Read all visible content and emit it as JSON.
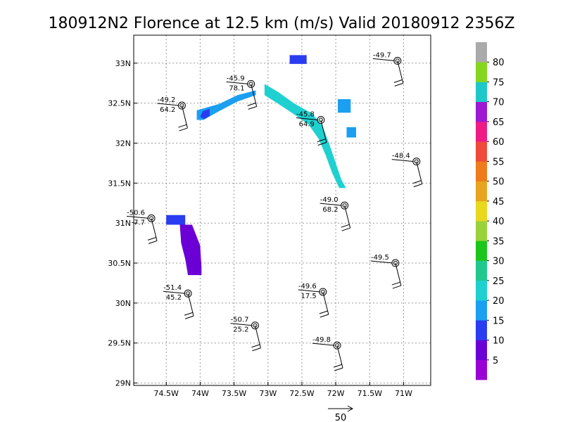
{
  "chart_data": {
    "type": "scatter",
    "title": "180912N2 Florence at 12.5 km (m/s) Valid 20180912 2356Z",
    "x_ticks": [
      "74.5W",
      "74W",
      "73.5W",
      "73W",
      "72.5W",
      "72W",
      "71.5W",
      "71W"
    ],
    "x_tick_values": [
      -74.5,
      -74.0,
      -73.5,
      -73.0,
      -72.5,
      -72.0,
      -71.5,
      -71.0
    ],
    "y_ticks": [
      "29N",
      "29.5N",
      "30N",
      "30.5N",
      "31N",
      "31.5N",
      "32N",
      "32.5N",
      "33N"
    ],
    "y_tick_values": [
      29.0,
      29.5,
      30.0,
      30.5,
      31.0,
      31.5,
      32.0,
      32.5,
      33.0
    ],
    "xlim": [
      -74.98,
      -70.6
    ],
    "ylim": [
      28.97,
      33.35
    ],
    "grid": true,
    "colorbar": {
      "labels": [
        "5",
        "10",
        "15",
        "20",
        "25",
        "30",
        "35",
        "40",
        "45",
        "50",
        "55",
        "60",
        "65",
        "70",
        "75",
        "80"
      ],
      "colors": [
        "#9a00d4",
        "#6a00d6",
        "#2a3cf0",
        "#1b9ff0",
        "#1fd0d0",
        "#20c88e",
        "#1bc61b",
        "#9ad23a",
        "#e8d81e",
        "#e8a41e",
        "#ee7b1c",
        "#ee4a3a",
        "#ee1b86",
        "#9d1ad2",
        "#1fc8c8",
        "#86d61e",
        "#aaaaaa"
      ]
    },
    "stations": [
      {
        "lon": -74.72,
        "lat": 31.06,
        "t": "-50.6",
        "w": "-7.7"
      },
      {
        "lon": -74.27,
        "lat": 32.47,
        "t": "-49.2",
        "w": "64.2"
      },
      {
        "lon": -73.25,
        "lat": 32.74,
        "t": "-45.9",
        "w": "78.1"
      },
      {
        "lon": -72.22,
        "lat": 32.29,
        "t": "-45.8",
        "w": "64.9"
      },
      {
        "lon": -71.09,
        "lat": 33.03,
        "t": "-49.7",
        "w": ""
      },
      {
        "lon": -70.81,
        "lat": 31.77,
        "t": "-48.4",
        "w": ""
      },
      {
        "lon": -71.87,
        "lat": 31.22,
        "t": "-49.0",
        "w": "68.2"
      },
      {
        "lon": -71.12,
        "lat": 30.5,
        "t": "-49.5",
        "w": ""
      },
      {
        "lon": -72.19,
        "lat": 30.14,
        "t": "-49.6",
        "w": "17.5"
      },
      {
        "lon": -74.18,
        "lat": 30.12,
        "t": "-51.4",
        "w": "45.2"
      },
      {
        "lon": -73.19,
        "lat": 29.72,
        "t": "-50.7",
        "w": "25.2"
      },
      {
        "lon": -71.98,
        "lat": 29.47,
        "t": "-49.8",
        "w": ""
      }
    ],
    "regions": [
      {
        "level": "15",
        "color": "#2a3cf0",
        "points": [
          [
            -72.68,
            33.1
          ],
          [
            -72.43,
            33.1
          ],
          [
            -72.43,
            32.99
          ],
          [
            -72.68,
            32.99
          ]
        ]
      },
      {
        "level": "20",
        "color": "#1b9ff0",
        "points": [
          [
            -74.05,
            32.41
          ],
          [
            -73.72,
            32.49
          ],
          [
            -73.45,
            32.6
          ],
          [
            -73.18,
            32.66
          ],
          [
            -73.18,
            32.6
          ],
          [
            -73.45,
            32.52
          ],
          [
            -73.72,
            32.4
          ],
          [
            -73.95,
            32.29
          ],
          [
            -74.05,
            32.29
          ]
        ]
      },
      {
        "level": "15",
        "color": "#2a3cf0",
        "points": [
          [
            -73.96,
            32.4
          ],
          [
            -73.86,
            32.43
          ],
          [
            -73.86,
            32.34
          ],
          [
            -73.94,
            32.3
          ],
          [
            -74.0,
            32.33
          ]
        ]
      },
      {
        "level": "25",
        "color": "#1fd0d0",
        "points": [
          [
            -73.05,
            32.74
          ],
          [
            -72.85,
            32.64
          ],
          [
            -72.62,
            32.5
          ],
          [
            -72.35,
            32.37
          ],
          [
            -72.2,
            32.22
          ],
          [
            -72.1,
            32.0
          ],
          [
            -72.0,
            31.75
          ],
          [
            -71.92,
            31.55
          ],
          [
            -71.85,
            31.44
          ],
          [
            -71.95,
            31.44
          ],
          [
            -72.05,
            31.62
          ],
          [
            -72.15,
            31.85
          ],
          [
            -72.25,
            32.05
          ],
          [
            -72.4,
            32.23
          ],
          [
            -72.65,
            32.38
          ],
          [
            -72.9,
            32.52
          ],
          [
            -73.05,
            32.6
          ]
        ]
      },
      {
        "level": "20",
        "color": "#1b9ff0",
        "points": [
          [
            -71.97,
            32.55
          ],
          [
            -71.78,
            32.55
          ],
          [
            -71.78,
            32.38
          ],
          [
            -71.97,
            32.38
          ]
        ]
      },
      {
        "level": "20",
        "color": "#1b9ff0",
        "points": [
          [
            -71.84,
            32.2
          ],
          [
            -71.7,
            32.2
          ],
          [
            -71.7,
            32.07
          ],
          [
            -71.84,
            32.07
          ]
        ]
      },
      {
        "level": "15",
        "color": "#2a3cf0",
        "points": [
          [
            -74.5,
            31.1
          ],
          [
            -74.22,
            31.1
          ],
          [
            -74.22,
            30.98
          ],
          [
            -74.5,
            30.98
          ]
        ]
      },
      {
        "level": "10",
        "color": "#6a00d6",
        "points": [
          [
            -74.3,
            30.98
          ],
          [
            -74.12,
            30.98
          ],
          [
            -74.0,
            30.72
          ],
          [
            -73.98,
            30.45
          ],
          [
            -73.98,
            30.35
          ],
          [
            -74.18,
            30.35
          ],
          [
            -74.22,
            30.55
          ],
          [
            -74.28,
            30.75
          ]
        ]
      }
    ],
    "reference_vector_label": "50"
  }
}
